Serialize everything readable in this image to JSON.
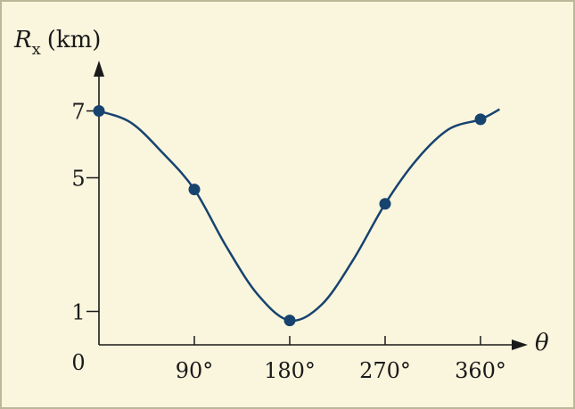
{
  "chart_data": {
    "type": "line",
    "ylabel_symbol": "R",
    "ylabel_subscript": "x",
    "ylabel_unit": "(km)",
    "xlabel": "θ",
    "origin_label": "0",
    "x_ticks": [
      {
        "value": 90,
        "label": "90°"
      },
      {
        "value": 180,
        "label": "180°"
      },
      {
        "value": 270,
        "label": "270°"
      },
      {
        "value": 360,
        "label": "360°"
      }
    ],
    "y_ticks": [
      {
        "value": 1,
        "label": "1"
      },
      {
        "value": 5,
        "label": "5"
      },
      {
        "value": 7,
        "label": "7"
      }
    ],
    "points": [
      {
        "x": 0,
        "y": 7.0
      },
      {
        "x": 90,
        "y": 4.65
      },
      {
        "x": 180,
        "y": 0.73
      },
      {
        "x": 270,
        "y": 4.22
      },
      {
        "x": 360,
        "y": 6.75
      }
    ],
    "curve": [
      {
        "x": 0,
        "y": 7.0
      },
      {
        "x": 30,
        "y": 6.65
      },
      {
        "x": 60,
        "y": 5.75
      },
      {
        "x": 90,
        "y": 4.65
      },
      {
        "x": 120,
        "y": 2.95
      },
      {
        "x": 150,
        "y": 1.5
      },
      {
        "x": 180,
        "y": 0.73
      },
      {
        "x": 210,
        "y": 1.2
      },
      {
        "x": 240,
        "y": 2.55
      },
      {
        "x": 270,
        "y": 4.22
      },
      {
        "x": 300,
        "y": 5.55
      },
      {
        "x": 330,
        "y": 6.45
      },
      {
        "x": 360,
        "y": 6.75
      },
      {
        "x": 378,
        "y": 7.05
      }
    ],
    "xlim": [
      0,
      390
    ],
    "ylim": [
      0,
      8
    ],
    "colors": {
      "curve": "#17436f",
      "point": "#17436f",
      "axis": "#1a1a1a",
      "background": "#faf5dd"
    }
  }
}
